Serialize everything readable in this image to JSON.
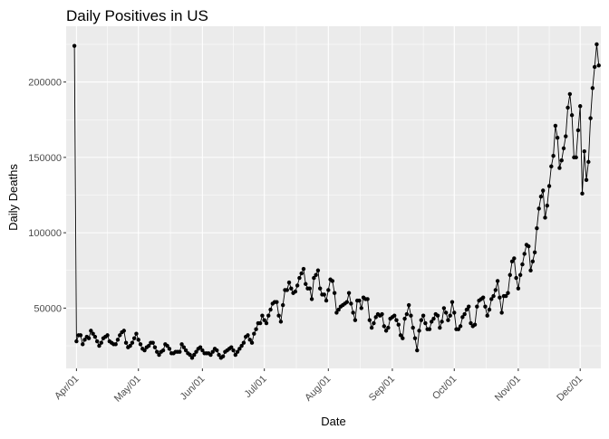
{
  "chart_data": {
    "type": "line",
    "title": "Daily Positives in US",
    "xlabel": "Date",
    "ylabel": "Daily Deaths",
    "x_start": "2020-03-31",
    "x_tick_labels": [
      "Apr/01",
      "May/01",
      "Jun/01",
      "Jul/01",
      "Aug/01",
      "Sep/01",
      "Oct/01",
      "Nov/01",
      "Dec/01"
    ],
    "x_tick_dates": [
      "2020-04-01",
      "2020-05-01",
      "2020-06-01",
      "2020-07-01",
      "2020-08-01",
      "2020-09-01",
      "2020-10-01",
      "2020-11-01",
      "2020-12-01"
    ],
    "y_ticks": [
      50000,
      100000,
      150000,
      200000
    ],
    "y_tick_labels": [
      "50000",
      "100000",
      "150000",
      "200000"
    ],
    "ylim": [
      10000,
      237000
    ],
    "xlim": [
      "2020-03-27",
      "2020-12-11"
    ],
    "grid": true,
    "background": "#ebebeb",
    "grid_color": "#ffffff",
    "line_color": "#000000",
    "point_color": "#000000",
    "series": [
      {
        "values": [
          224000,
          28000,
          32000,
          32000,
          26000,
          29000,
          31000,
          30000,
          35000,
          33000,
          31000,
          28000,
          25000,
          27000,
          30000,
          31000,
          32000,
          28000,
          27000,
          26000,
          26000,
          29000,
          32000,
          34000,
          35000,
          27000,
          24000,
          25000,
          27000,
          30000,
          33000,
          29000,
          26000,
          23000,
          22000,
          24000,
          25000,
          27000,
          27000,
          24000,
          21000,
          19000,
          21000,
          22000,
          26000,
          25000,
          23000,
          20000,
          20000,
          21000,
          21000,
          21000,
          26000,
          24000,
          22000,
          20000,
          19000,
          17000,
          19000,
          21000,
          23000,
          24000,
          22000,
          20000,
          20000,
          20000,
          19000,
          21000,
          23000,
          22000,
          19000,
          17000,
          18000,
          21000,
          22000,
          23000,
          24000,
          22000,
          19000,
          21000,
          23000,
          25000,
          27000,
          31000,
          32000,
          29000,
          27000,
          33000,
          36000,
          40000,
          40000,
          45000,
          42000,
          40000,
          45000,
          49000,
          53000,
          54000,
          54000,
          45000,
          41000,
          52000,
          62000,
          62000,
          67000,
          63000,
          60000,
          61000,
          65000,
          70000,
          73000,
          76000,
          66000,
          63000,
          63000,
          56000,
          70000,
          72000,
          75000,
          63000,
          59000,
          59000,
          55000,
          62000,
          69000,
          68000,
          60000,
          47000,
          49000,
          51000,
          52000,
          53000,
          54000,
          60000,
          53000,
          47000,
          42000,
          55000,
          55000,
          50000,
          57000,
          56000,
          56000,
          42000,
          37000,
          40000,
          44000,
          46000,
          45000,
          46000,
          38000,
          35000,
          37000,
          43000,
          44000,
          45000,
          42000,
          39000,
          32000,
          30000,
          43000,
          46000,
          52000,
          45000,
          37000,
          30000,
          22000,
          35000,
          42000,
          45000,
          40000,
          36000,
          36000,
          41000,
          43000,
          46000,
          45000,
          37000,
          41000,
          50000,
          47000,
          42000,
          45000,
          54000,
          47000,
          36000,
          36000,
          38000,
          44000,
          46000,
          49000,
          51000,
          40000,
          38000,
          39000,
          51000,
          55000,
          56000,
          57000,
          51000,
          45000,
          49000,
          56000,
          58000,
          62000,
          68000,
          57000,
          47000,
          58000,
          58000,
          60000,
          72000,
          81000,
          83000,
          70000,
          63000,
          72000,
          79000,
          86000,
          92000,
          91000,
          75000,
          81000,
          87000,
          103000,
          116000,
          124000,
          128000,
          110000,
          118000,
          131000,
          144000,
          151000,
          171000,
          163000,
          143000,
          148000,
          156000,
          164000,
          183000,
          192000,
          178000,
          150000,
          150000,
          168000,
          184000,
          126000,
          154000,
          135000,
          147000,
          176000,
          196000,
          210000,
          225000,
          211000
        ]
      }
    ]
  }
}
